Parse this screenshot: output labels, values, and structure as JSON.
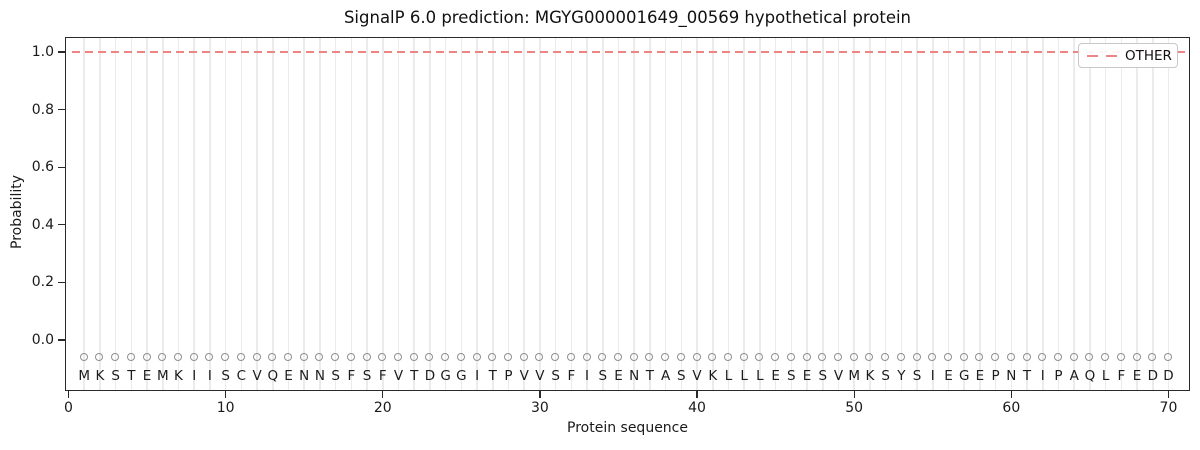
{
  "chart_data": {
    "type": "line",
    "title": "SignalP 6.0 prediction: MGYG000001649_00569 hypothetical protein",
    "xlabel": "Protein sequence",
    "ylabel": "Probability",
    "x_ticks": [
      0,
      10,
      20,
      30,
      40,
      50,
      60,
      70
    ],
    "y_ticks": [
      "0.0",
      "0.2",
      "0.4",
      "0.6",
      "0.8",
      "1.0"
    ],
    "xlim": [
      -0.2,
      71.5
    ],
    "ylim": [
      -0.19,
      1.06
    ],
    "grid": "vertical gridline at each residue position",
    "legend": {
      "position": "upper right",
      "entries": [
        {
          "label": "OTHER",
          "color": "#ed8585",
          "style": "dashed"
        }
      ]
    },
    "sequence": "MKSTEMKIISCVQENNSFSFVTDGGITPVVSFISENTASVKLLLESESVMKSYSIEGEPNTIPAQLFEDD",
    "sequence_marker": {
      "shape": "circle-outline",
      "color": "#909090",
      "marker_y": -0.06,
      "letter_y": -0.125
    },
    "series": [
      {
        "name": "OTHER",
        "color": "#ed8585",
        "style": "dashed",
        "x_start": 1,
        "x_end": 70,
        "values": [
          1.0,
          1.0,
          1.0,
          1.0,
          1.0,
          1.0,
          1.0,
          1.0,
          1.0,
          1.0,
          1.0,
          1.0,
          1.0,
          1.0,
          1.0,
          1.0,
          1.0,
          1.0,
          1.0,
          1.0,
          1.0,
          1.0,
          1.0,
          1.0,
          1.0,
          1.0,
          1.0,
          1.0,
          1.0,
          1.0,
          1.0,
          1.0,
          1.0,
          1.0,
          1.0,
          1.0,
          1.0,
          1.0,
          1.0,
          1.0,
          1.0,
          1.0,
          1.0,
          1.0,
          1.0,
          1.0,
          1.0,
          1.0,
          1.0,
          1.0,
          1.0,
          1.0,
          1.0,
          1.0,
          1.0,
          1.0,
          1.0,
          1.0,
          1.0,
          1.0,
          1.0,
          1.0,
          1.0,
          1.0,
          1.0,
          1.0,
          1.0,
          1.0,
          1.0,
          1.0
        ]
      }
    ]
  },
  "colors": {
    "series_red": "#ed8585",
    "grid": "#ebebeb",
    "spine": "#2a2a2a",
    "marker_stroke": "#909090",
    "legend_border": "#c8c8c8"
  }
}
